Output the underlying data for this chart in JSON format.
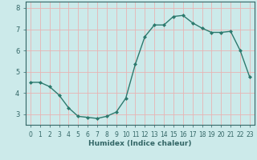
{
  "x": [
    0,
    1,
    2,
    3,
    4,
    5,
    6,
    7,
    8,
    9,
    10,
    11,
    12,
    13,
    14,
    15,
    16,
    17,
    18,
    19,
    20,
    21,
    22,
    23
  ],
  "y": [
    4.5,
    4.5,
    4.3,
    3.9,
    3.3,
    2.9,
    2.85,
    2.8,
    2.9,
    3.1,
    3.75,
    5.35,
    6.65,
    7.2,
    7.2,
    7.6,
    7.65,
    7.3,
    7.05,
    6.85,
    6.85,
    6.9,
    6.0,
    4.75
  ],
  "xlabel": "Humidex (Indice chaleur)",
  "line_color": "#2d7a6e",
  "marker": "D",
  "marker_size": 2.0,
  "bg_color": "#cceaea",
  "grid_color": "#e8b4b4",
  "axis_color": "#336666",
  "xlim": [
    -0.5,
    23.5
  ],
  "ylim": [
    2.5,
    8.3
  ],
  "yticks": [
    3,
    4,
    5,
    6,
    7,
    8
  ],
  "xticks": [
    0,
    1,
    2,
    3,
    4,
    5,
    6,
    7,
    8,
    9,
    10,
    11,
    12,
    13,
    14,
    15,
    16,
    17,
    18,
    19,
    20,
    21,
    22,
    23
  ]
}
